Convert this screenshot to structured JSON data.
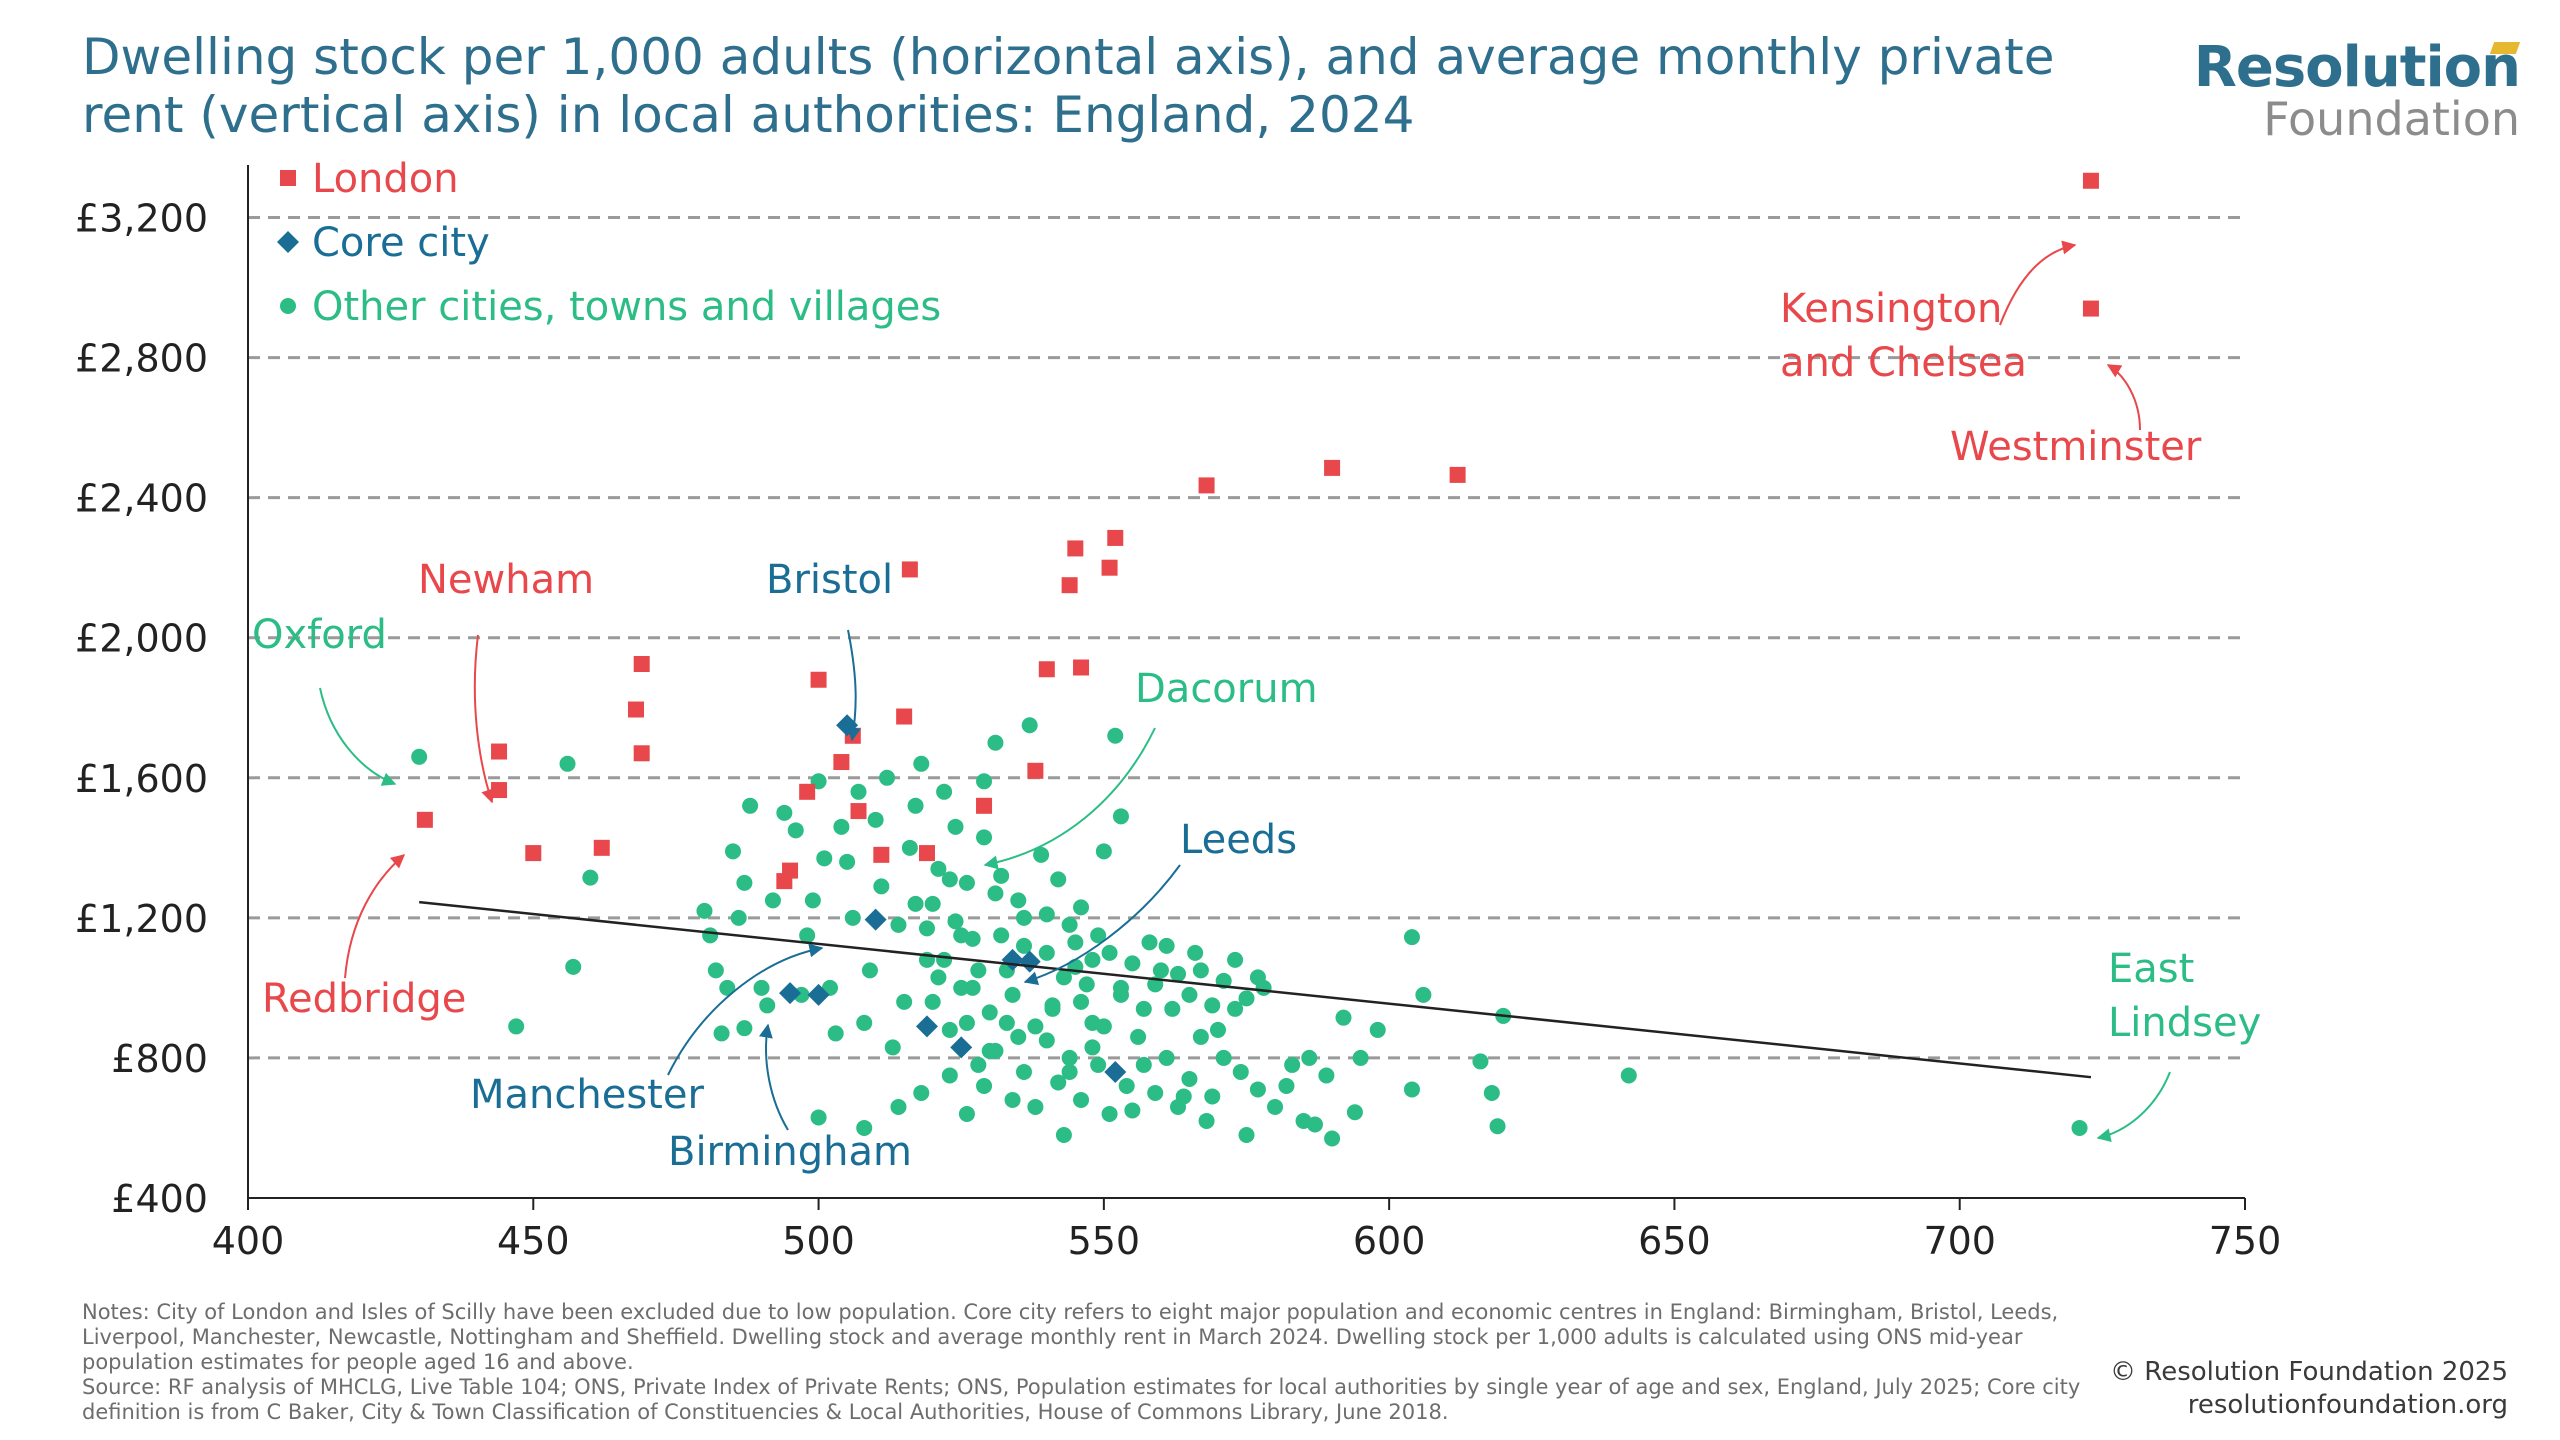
{
  "header": {
    "title": "Dwelling stock per 1,000 adults (horizontal axis), and average monthly private rent (vertical axis) in local authorities: England, 2024",
    "logo_top": "Resolution",
    "logo_bottom": "Foundation"
  },
  "footer": {
    "notes": "Notes: City of London and Isles of Scilly have been excluded due to low population. Core city refers to eight major population and economic centres in England: Birmingham, Bristol, Leeds, Liverpool, Manchester, Newcastle, Nottingham and Sheffield. Dwelling stock and average monthly rent in March 2024. Dwelling stock per 1,000 adults is calculated using ONS mid-year population estimates for people aged 16 and above.",
    "source": "Source: RF analysis of MHCLG, Live Table 104; ONS, Private Index of Private Rents; ONS, Population estimates for local authorities by single year of age and sex, England, July 2025; Core city definition is from C Baker, City & Town Classification of Constituencies & Local Authorities, House of Commons Library, June 2018.",
    "copyright": "© Resolution Foundation 2025",
    "website": "resolutionfoundation.org"
  },
  "chart_data": {
    "type": "scatter",
    "title": "Dwelling stock per 1,000 adults (horizontal axis), and average monthly private rent (vertical axis) in local authorities: England, 2024",
    "xlabel": "",
    "ylabel": "",
    "xlim": [
      400,
      750
    ],
    "ylim": [
      400,
      3300
    ],
    "xticks": [
      400,
      450,
      500,
      550,
      600,
      650,
      700,
      750
    ],
    "xtick_labels": [
      "400",
      "450",
      "500",
      "550",
      "600",
      "650",
      "700",
      "750"
    ],
    "yticks": [
      400,
      800,
      1200,
      1600,
      2000,
      2400,
      2800,
      3200
    ],
    "ytick_labels": [
      "£400",
      "£800",
      "£1,200",
      "£1,600",
      "£2,000",
      "£2,400",
      "£2,800",
      "£3,200"
    ],
    "grid": "horizontal dashed",
    "legend_position": "top-left",
    "colors": {
      "london": "#e8484b",
      "core": "#1a6e96",
      "other": "#2cbd86",
      "trend": "#222222",
      "grid": "#9a9a9a",
      "axis": "#222222"
    },
    "trendline": {
      "x": [
        430,
        723
      ],
      "y": [
        1245,
        745
      ]
    },
    "series": [
      {
        "name": "London",
        "marker": "square",
        "points": [
          [
            723,
            3305
          ],
          [
            723,
            2940
          ],
          [
            568,
            2435
          ],
          [
            590,
            2485
          ],
          [
            612,
            2465
          ],
          [
            552,
            2285
          ],
          [
            545,
            2255
          ],
          [
            551,
            2200
          ],
          [
            544,
            2150
          ],
          [
            516,
            2195
          ],
          [
            540,
            1910
          ],
          [
            546,
            1915
          ],
          [
            500,
            1880
          ],
          [
            469,
            1925
          ],
          [
            468,
            1795
          ],
          [
            469,
            1670
          ],
          [
            444,
            1675
          ],
          [
            444,
            1565
          ],
          [
            431,
            1480
          ],
          [
            450,
            1385
          ],
          [
            462,
            1400
          ],
          [
            515,
            1775
          ],
          [
            506,
            1720
          ],
          [
            504,
            1645
          ],
          [
            507,
            1505
          ],
          [
            498,
            1560
          ],
          [
            495,
            1335
          ],
          [
            494,
            1305
          ],
          [
            511,
            1380
          ],
          [
            519,
            1385
          ],
          [
            529,
            1520
          ],
          [
            538,
            1620
          ]
        ]
      },
      {
        "name": "Core city",
        "marker": "diamond",
        "points": [
          [
            505,
            1750
          ],
          [
            510,
            1195
          ],
          [
            534,
            1080
          ],
          [
            537,
            1075
          ],
          [
            495,
            985
          ],
          [
            500,
            980
          ],
          [
            519,
            890
          ],
          [
            525,
            830
          ],
          [
            552,
            760
          ]
        ]
      },
      {
        "name": "Other cities, towns and villages",
        "marker": "circle",
        "points": [
          [
            430,
            1660
          ],
          [
            456,
            1640
          ],
          [
            460,
            1315
          ],
          [
            457,
            1060
          ],
          [
            447,
            890
          ],
          [
            721,
            600
          ],
          [
            642,
            750
          ],
          [
            620,
            920
          ],
          [
            618,
            700
          ],
          [
            619,
            605
          ],
          [
            616,
            790
          ],
          [
            604,
            1145
          ],
          [
            606,
            980
          ],
          [
            604,
            710
          ],
          [
            598,
            880
          ],
          [
            595,
            800
          ],
          [
            594,
            645
          ],
          [
            592,
            915
          ],
          [
            590,
            570
          ],
          [
            586,
            800
          ],
          [
            585,
            620
          ],
          [
            582,
            720
          ],
          [
            578,
            1000
          ],
          [
            575,
            580
          ],
          [
            574,
            760
          ],
          [
            570,
            880
          ],
          [
            568,
            620
          ],
          [
            566,
            1100
          ],
          [
            564,
            690
          ],
          [
            562,
            940
          ],
          [
            560,
            1050
          ],
          [
            558,
            1130
          ],
          [
            557,
            780
          ],
          [
            555,
            650
          ],
          [
            553,
            980
          ],
          [
            552,
            1720
          ],
          [
            553,
            1490
          ],
          [
            550,
            1390
          ],
          [
            550,
            890
          ],
          [
            548,
            830
          ],
          [
            546,
            1230
          ],
          [
            545,
            1060
          ],
          [
            544,
            760
          ],
          [
            543,
            580
          ],
          [
            541,
            940
          ],
          [
            540,
            1100
          ],
          [
            539,
            1380
          ],
          [
            537,
            1750
          ],
          [
            536,
            1200
          ],
          [
            535,
            860
          ],
          [
            534,
            680
          ],
          [
            533,
            1050
          ],
          [
            531,
            1700
          ],
          [
            531,
            1270
          ],
          [
            530,
            930
          ],
          [
            529,
            1590
          ],
          [
            529,
            1430
          ],
          [
            528,
            780
          ],
          [
            527,
            1140
          ],
          [
            526,
            1300
          ],
          [
            525,
            1000
          ],
          [
            524,
            1460
          ],
          [
            523,
            880
          ],
          [
            522,
            1560
          ],
          [
            521,
            1340
          ],
          [
            520,
            1240
          ],
          [
            519,
            1080
          ],
          [
            518,
            1640
          ],
          [
            517,
            1520
          ],
          [
            516,
            1400
          ],
          [
            515,
            960
          ],
          [
            514,
            1180
          ],
          [
            513,
            830
          ],
          [
            512,
            1600
          ],
          [
            511,
            1290
          ],
          [
            510,
            1480
          ],
          [
            509,
            1050
          ],
          [
            508,
            900
          ],
          [
            507,
            1560
          ],
          [
            506,
            1200
          ],
          [
            505,
            1360
          ],
          [
            504,
            1460
          ],
          [
            503,
            870
          ],
          [
            502,
            1000
          ],
          [
            501,
            1370
          ],
          [
            500,
            1590
          ],
          [
            499,
            1250
          ],
          [
            498,
            1150
          ],
          [
            497,
            980
          ],
          [
            496,
            1450
          ],
          [
            494,
            1500
          ],
          [
            492,
            1250
          ],
          [
            491,
            950
          ],
          [
            490,
            1000
          ],
          [
            488,
            1520
          ],
          [
            487,
            1300
          ],
          [
            486,
            1200
          ],
          [
            485,
            1390
          ],
          [
            484,
            1000
          ],
          [
            483,
            870
          ],
          [
            482,
            1050
          ],
          [
            481,
            1150
          ],
          [
            480,
            1220
          ],
          [
            487,
            885
          ],
          [
            500,
            630
          ],
          [
            508,
            600
          ],
          [
            514,
            660
          ],
          [
            518,
            700
          ],
          [
            523,
            750
          ],
          [
            526,
            640
          ],
          [
            529,
            720
          ],
          [
            531,
            820
          ],
          [
            533,
            900
          ],
          [
            536,
            760
          ],
          [
            538,
            660
          ],
          [
            540,
            850
          ],
          [
            542,
            730
          ],
          [
            544,
            800
          ],
          [
            546,
            680
          ],
          [
            548,
            900
          ],
          [
            549,
            780
          ],
          [
            551,
            640
          ],
          [
            554,
            720
          ],
          [
            556,
            860
          ],
          [
            559,
            700
          ],
          [
            561,
            800
          ],
          [
            563,
            660
          ],
          [
            565,
            740
          ],
          [
            567,
            860
          ],
          [
            569,
            690
          ],
          [
            571,
            800
          ],
          [
            573,
            940
          ],
          [
            577,
            710
          ],
          [
            580,
            660
          ],
          [
            583,
            780
          ],
          [
            587,
            610
          ],
          [
            589,
            750
          ],
          [
            527,
            1000
          ],
          [
            532,
            1150
          ],
          [
            535,
            1250
          ],
          [
            541,
            950
          ],
          [
            543,
            1030
          ],
          [
            545,
            1130
          ],
          [
            547,
            1010
          ],
          [
            549,
            1150
          ],
          [
            551,
            1100
          ],
          [
            553,
            1000
          ],
          [
            555,
            1070
          ],
          [
            557,
            940
          ],
          [
            559,
            1010
          ],
          [
            561,
            1120
          ],
          [
            563,
            1040
          ],
          [
            565,
            980
          ],
          [
            567,
            1050
          ],
          [
            569,
            950
          ],
          [
            571,
            1020
          ],
          [
            573,
            1080
          ],
          [
            575,
            970
          ],
          [
            577,
            1030
          ],
          [
            520,
            960
          ],
          [
            522,
            1080
          ],
          [
            524,
            1190
          ],
          [
            526,
            900
          ],
          [
            528,
            1050
          ],
          [
            530,
            820
          ],
          [
            532,
            1320
          ],
          [
            534,
            980
          ],
          [
            536,
            1120
          ],
          [
            538,
            890
          ],
          [
            540,
            1210
          ],
          [
            542,
            1310
          ],
          [
            544,
            1180
          ],
          [
            546,
            960
          ],
          [
            548,
            1080
          ],
          [
            517,
            1240
          ],
          [
            519,
            1170
          ],
          [
            521,
            1030
          ],
          [
            523,
            1310
          ],
          [
            525,
            1150
          ]
        ]
      }
    ],
    "annotations": [
      {
        "text": "Kensington and Chelsea",
        "group": "London",
        "x": 723,
        "y": 3305
      },
      {
        "text": "Westminster",
        "group": "London",
        "x": 723,
        "y": 2940
      },
      {
        "text": "Newham",
        "group": "London",
        "x": 444,
        "y": 1675
      },
      {
        "text": "Redbridge",
        "group": "London",
        "x": 431,
        "y": 1480
      },
      {
        "text": "Oxford",
        "group": "Other cities, towns and villages",
        "x": 430,
        "y": 1660
      },
      {
        "text": "Bristol",
        "group": "Core city",
        "x": 505,
        "y": 1750
      },
      {
        "text": "Dacorum",
        "group": "Other cities, towns and villages",
        "x": 529,
        "y": 1430
      },
      {
        "text": "Leeds",
        "group": "Core city",
        "x": 537,
        "y": 1075
      },
      {
        "text": "Manchester",
        "group": "Core city",
        "x": 510,
        "y": 1195
      },
      {
        "text": "Birmingham",
        "group": "Core city",
        "x": 495,
        "y": 985
      },
      {
        "text": "East Lindsey",
        "group": "Other cities, towns and villages",
        "x": 721,
        "y": 600
      }
    ]
  }
}
